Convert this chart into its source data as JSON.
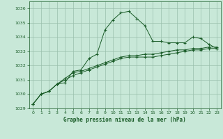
{
  "title": "Graphe pression niveau de la mer (hPa)",
  "bg_color": "#c8e8d8",
  "grid_color": "#9abfac",
  "line_color": "#1a5c28",
  "ylim": [
    1029,
    1036.5
  ],
  "xlim": [
    -0.5,
    23.5
  ],
  "yticks": [
    1029,
    1030,
    1031,
    1032,
    1033,
    1034,
    1035,
    1036
  ],
  "xticks": [
    0,
    1,
    2,
    3,
    4,
    5,
    6,
    7,
    8,
    9,
    10,
    11,
    12,
    13,
    14,
    15,
    16,
    17,
    18,
    19,
    20,
    21,
    22,
    23
  ],
  "series1": [
    1029.3,
    1030.0,
    1030.2,
    1030.7,
    1030.8,
    1031.6,
    1031.7,
    1032.5,
    1032.8,
    1034.5,
    1035.2,
    1035.7,
    1035.8,
    1035.3,
    1034.8,
    1033.7,
    1033.7,
    1033.6,
    1033.6,
    1033.6,
    1034.0,
    1033.9,
    1033.5,
    1033.2
  ],
  "series2": [
    1029.3,
    1030.0,
    1030.2,
    1030.7,
    1031.0,
    1031.3,
    1031.5,
    1031.7,
    1031.9,
    1032.1,
    1032.3,
    1032.5,
    1032.6,
    1032.6,
    1032.6,
    1032.6,
    1032.7,
    1032.8,
    1032.9,
    1033.0,
    1033.1,
    1033.1,
    1033.2,
    1033.2
  ],
  "series3": [
    1029.3,
    1030.0,
    1030.2,
    1030.7,
    1031.1,
    1031.5,
    1031.6,
    1031.8,
    1032.0,
    1032.2,
    1032.4,
    1032.6,
    1032.7,
    1032.7,
    1032.8,
    1032.8,
    1032.9,
    1033.0,
    1033.1,
    1033.1,
    1033.2,
    1033.2,
    1033.3,
    1033.3
  ]
}
